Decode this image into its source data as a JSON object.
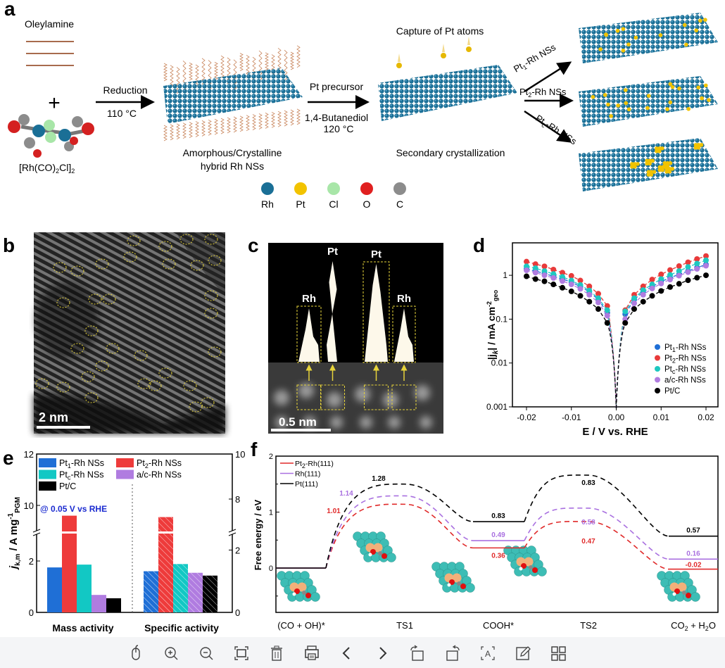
{
  "panel_a": {
    "label": "a",
    "oleylamine": "Oleylamine",
    "plus": "+",
    "precursor": {
      "p1": "[Rh(CO)",
      "s1": "2",
      "p2": "Cl]",
      "s2": "2"
    },
    "step1_top": "Reduction",
    "step1_bottom": "110 °C",
    "sheet1_caption_1": "Amorphous/Crystalline",
    "sheet1_caption_2": "hybrid Rh NSs",
    "step2_top": "Pt precursor",
    "step2_bottom_1": "1,4-Butanediol",
    "step2_bottom_2": "120 °C",
    "capture": "Capture of Pt atoms",
    "sheet2_caption": "Secondary crystallization",
    "products": [
      {
        "base": "Pt",
        "sub": "1",
        "rest": "-Rh NSs"
      },
      {
        "base": "Pt",
        "sub": "2",
        "rest": "-Rh NSs"
      },
      {
        "base": "Pt",
        "sub": "c",
        "rest": "-Rh NSs"
      }
    ],
    "atom_legend": [
      {
        "label": "Rh",
        "color": "#1a6f96"
      },
      {
        "label": "Pt",
        "color": "#f2c300"
      },
      {
        "label": "Cl",
        "color": "#a8e6a8"
      },
      {
        "label": "O",
        "color": "#e02020"
      },
      {
        "label": "C",
        "color": "#8c8c8c"
      }
    ]
  },
  "panel_b": {
    "label": "b",
    "scale_bar": "2 nm"
  },
  "panel_c": {
    "label": "c",
    "peaks": [
      "Rh",
      "Pt",
      "Pt",
      "Rh"
    ],
    "scale_bar": "0.5 nm"
  },
  "panel_d": {
    "label": "d"
  },
  "panel_e": {
    "label": "e",
    "annotation": "@ 0.05 V vs RHE"
  },
  "panel_f": {
    "label": "f"
  },
  "chart_data": [
    {
      "panel": "d",
      "type": "scatter",
      "xlabel": "E / V vs. RHE",
      "ylabel": {
        "base": "|j",
        "sub1": "k",
        "mid": "| / mA cm",
        "sup": "-2",
        "sub2": "geo"
      },
      "yscale": "log",
      "xlim": [
        -0.022,
        0.022
      ],
      "ylim": [
        0.001,
        4
      ],
      "xticks": [
        "-0.02",
        "-0.01",
        "0.00",
        "0.01",
        "0.02"
      ],
      "xtick_values": [
        -0.02,
        -0.01,
        0,
        0.01,
        0.02
      ],
      "yticks": [
        "0.001",
        "0.01",
        "0.1",
        "1"
      ],
      "ytick_values": [
        0.001,
        0.01,
        0.1,
        1
      ],
      "legend_position": "bottom-right",
      "x": [
        -0.02,
        -0.018,
        -0.016,
        -0.014,
        -0.012,
        -0.01,
        -0.008,
        -0.006,
        -0.004,
        -0.002,
        0.002,
        0.004,
        0.006,
        0.008,
        0.01,
        0.012,
        0.014,
        0.016,
        0.018,
        0.02
      ],
      "series": [
        {
          "name": {
            "base": "Pt",
            "sub": "1",
            "rest": "-Rh NSs"
          },
          "color": "#1f6fd6",
          "values": [
            1.4,
            1.25,
            1.1,
            0.95,
            0.82,
            0.7,
            0.55,
            0.42,
            0.28,
            0.14,
            0.13,
            0.28,
            0.42,
            0.55,
            0.72,
            0.88,
            1.05,
            1.25,
            1.5,
            1.75
          ]
        },
        {
          "name": {
            "base": "Pt",
            "sub": "2",
            "rest": "-Rh NSs"
          },
          "color": "#e83a3a",
          "values": [
            2.05,
            1.8,
            1.6,
            1.35,
            1.15,
            0.97,
            0.76,
            0.56,
            0.38,
            0.2,
            0.16,
            0.36,
            0.56,
            0.8,
            1.05,
            1.32,
            1.62,
            1.98,
            2.35,
            2.75
          ]
        },
        {
          "name": {
            "base": "Pt",
            "sub": "c",
            "rest": "-Rh NSs"
          },
          "color": "#1ec8c0",
          "values": [
            1.6,
            1.45,
            1.25,
            1.07,
            0.92,
            0.76,
            0.6,
            0.45,
            0.3,
            0.16,
            0.15,
            0.3,
            0.46,
            0.62,
            0.82,
            1.02,
            1.25,
            1.55,
            1.85,
            2.2
          ]
        },
        {
          "name": {
            "base": "a/c-Rh NSs",
            "sub": "",
            "rest": ""
          },
          "color": "#b07ce0",
          "values": [
            1.3,
            1.15,
            1.0,
            0.87,
            0.74,
            0.62,
            0.49,
            0.36,
            0.24,
            0.12,
            0.1,
            0.23,
            0.36,
            0.5,
            0.65,
            0.8,
            0.98,
            1.18,
            1.4,
            1.65
          ]
        },
        {
          "name": {
            "base": "Pt/C",
            "sub": "",
            "rest": ""
          },
          "color": "#000000",
          "values": [
            0.95,
            0.82,
            0.73,
            0.62,
            0.52,
            0.43,
            0.34,
            0.25,
            0.17,
            0.082,
            0.082,
            0.17,
            0.25,
            0.34,
            0.44,
            0.54,
            0.64,
            0.77,
            0.88,
            1.0
          ]
        }
      ]
    },
    {
      "panel": "e",
      "type": "bar",
      "categories": [
        "Mass activity",
        "Specific activity"
      ],
      "ylabel_left": {
        "base": "j",
        "sub1": "k,m",
        "mid": " / A mg",
        "sup": "-1",
        "sub2": "PGM"
      },
      "left_axis": {
        "ticks": [
          "0",
          "2",
          "10",
          "12"
        ],
        "tick_values": [
          0,
          2,
          10,
          12
        ],
        "break": true
      },
      "right_axis": {
        "ticks": [
          "0",
          "2",
          "8",
          "10"
        ],
        "tick_values": [
          0,
          2,
          8,
          10
        ],
        "break": true
      },
      "legend_position": "top-left",
      "series": [
        {
          "name": {
            "base": "Pt",
            "sub": "1",
            "rest": "-Rh NSs"
          },
          "color": "#1f6fd6",
          "values": [
            1.75,
            1.32
          ]
        },
        {
          "name": {
            "base": "Pt",
            "sub": "2",
            "rest": "-Rh NSs"
          },
          "color": "#ee3b3b",
          "values": [
            9.6,
            7.2
          ]
        },
        {
          "name": {
            "base": "Pt",
            "sub": "c",
            "rest": "-Rh NSs"
          },
          "color": "#12c8c4",
          "values": [
            1.86,
            1.55
          ]
        },
        {
          "name": {
            "base": "a/c-Rh NSs",
            "sub": "",
            "rest": ""
          },
          "color": "#b07ce0",
          "values": [
            0.68,
            1.27
          ]
        },
        {
          "name": {
            "base": "Pt/C",
            "sub": "",
            "rest": ""
          },
          "color": "#000000",
          "values": [
            0.55,
            1.18
          ]
        }
      ],
      "specific_hatched": true
    },
    {
      "panel": "f",
      "type": "line",
      "ylabel": "Free energy / eV",
      "ylim": [
        -0.8,
        2
      ],
      "yticks": [
        "0",
        "1",
        "2"
      ],
      "ytick_values": [
        0,
        1,
        2
      ],
      "categories": [
        "(CO + OH)*",
        "TS1",
        "COOH*",
        "TS2",
        "CO2 + H2O"
      ],
      "category_labels": [
        {
          "main": "(CO + OH)*"
        },
        {
          "main": "TS1"
        },
        {
          "main": "COOH*"
        },
        {
          "main": "TS2"
        },
        {
          "p1": "CO",
          "s1": "2",
          "p2": " + H",
          "s2": "2",
          "p3": "O"
        }
      ],
      "legend_position": "top-left",
      "series": [
        {
          "name": {
            "base": "Pt",
            "sub": "2",
            "rest": "-Rh(111)"
          },
          "color": "#e02a2a",
          "levels": [
            0,
            0.36,
            -0.02
          ],
          "barriers": [
            1.01,
            0.47
          ],
          "labels": [
            "1.01",
            "0.36",
            "0.47",
            "-0.02"
          ]
        },
        {
          "name": {
            "base": "Rh(111)",
            "sub": "",
            "rest": ""
          },
          "color": "#a970e0",
          "levels": [
            0,
            0.49,
            0.16
          ],
          "barriers": [
            1.14,
            0.58
          ],
          "labels": [
            "1.14",
            "0.49",
            "0.58",
            "0.16"
          ]
        },
        {
          "name": {
            "base": "Pt(111)",
            "sub": "",
            "rest": ""
          },
          "color": "#000000",
          "levels": [
            0,
            0.83,
            0.57
          ],
          "barriers": [
            1.28,
            0.83
          ],
          "labels": [
            "1.28",
            "0.83",
            "0.83",
            "0.57"
          ]
        }
      ]
    }
  ],
  "toolbar": [
    {
      "name": "mouse-mode",
      "icon": "mouse-icon"
    },
    {
      "name": "zoom-in",
      "icon": "zoom-in-icon"
    },
    {
      "name": "zoom-out",
      "icon": "zoom-out-icon"
    },
    {
      "name": "fit-screen",
      "icon": "fit-screen-icon"
    },
    {
      "name": "delete",
      "icon": "trash-icon"
    },
    {
      "name": "print",
      "icon": "printer-icon"
    },
    {
      "name": "previous",
      "icon": "chevron-left-icon"
    },
    {
      "name": "next",
      "icon": "chevron-right-icon"
    },
    {
      "name": "rotate-right",
      "icon": "rotate-clockwise-icon"
    },
    {
      "name": "rotate-left",
      "icon": "rotate-counterclockwise-icon"
    },
    {
      "name": "ocr-text",
      "icon": "text-recognition-icon"
    },
    {
      "name": "edit",
      "icon": "edit-icon"
    },
    {
      "name": "thumbnails",
      "icon": "grid-icon"
    }
  ]
}
